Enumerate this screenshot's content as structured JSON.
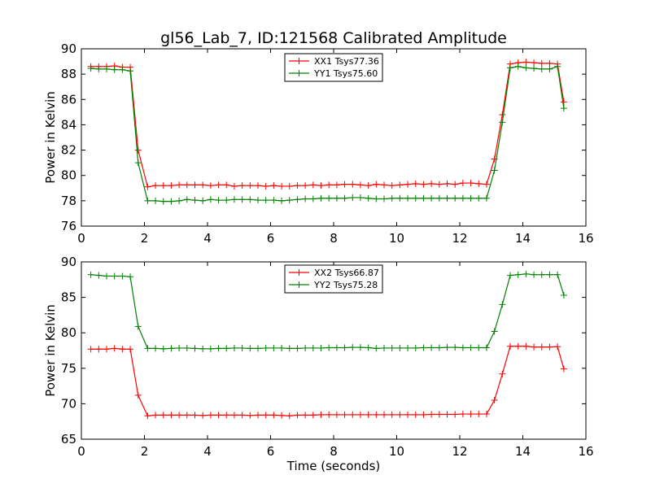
{
  "title": "gl56_Lab_7, ID:121568 Calibrated Amplitude",
  "xlabel": "Time (seconds)",
  "colors": {
    "red": "#ff0000",
    "green": "#008000"
  },
  "chart_data": [
    {
      "type": "line",
      "ylabel": "Power in Kelvin",
      "xlim": [
        0,
        16
      ],
      "ylim": [
        76,
        90
      ],
      "xticks": [
        0,
        2,
        4,
        6,
        8,
        10,
        12,
        14,
        16
      ],
      "yticks": [
        76,
        78,
        80,
        82,
        84,
        86,
        88,
        90
      ],
      "legend": "upper-center",
      "x": [
        0.3,
        0.55,
        0.8,
        1.05,
        1.3,
        1.55,
        1.8,
        2.1,
        2.35,
        2.6,
        2.85,
        3.1,
        3.35,
        3.6,
        3.85,
        4.1,
        4.35,
        4.6,
        4.85,
        5.1,
        5.35,
        5.6,
        5.85,
        6.1,
        6.35,
        6.6,
        6.85,
        7.1,
        7.35,
        7.6,
        7.85,
        8.1,
        8.35,
        8.6,
        8.85,
        9.1,
        9.35,
        9.6,
        9.85,
        10.1,
        10.35,
        10.6,
        10.85,
        11.1,
        11.35,
        11.6,
        11.85,
        12.1,
        12.35,
        12.6,
        12.85,
        13.1,
        13.35,
        13.6,
        13.85,
        14.1,
        14.35,
        14.6,
        14.85,
        15.1,
        15.3
      ],
      "series": [
        {
          "name": "XX1 Tsys77.36",
          "color": "#ff0000",
          "values": [
            88.6,
            88.6,
            88.6,
            88.65,
            88.55,
            88.55,
            82.0,
            79.1,
            79.2,
            79.2,
            79.2,
            79.25,
            79.25,
            79.25,
            79.25,
            79.2,
            79.25,
            79.25,
            79.15,
            79.2,
            79.2,
            79.2,
            79.15,
            79.2,
            79.15,
            79.15,
            79.2,
            79.2,
            79.25,
            79.2,
            79.25,
            79.25,
            79.3,
            79.3,
            79.25,
            79.2,
            79.3,
            79.25,
            79.2,
            79.25,
            79.3,
            79.35,
            79.3,
            79.35,
            79.3,
            79.35,
            79.3,
            79.4,
            79.4,
            79.35,
            79.3,
            81.3,
            84.8,
            88.8,
            88.9,
            88.95,
            88.9,
            88.85,
            88.85,
            88.8,
            85.8
          ]
        },
        {
          "name": "YY1 Tsys75.60",
          "color": "#008000",
          "values": [
            88.45,
            88.4,
            88.4,
            88.35,
            88.35,
            88.25,
            81.0,
            78.0,
            78.0,
            77.95,
            77.95,
            78.0,
            78.1,
            78.05,
            78.0,
            78.1,
            78.05,
            78.05,
            78.1,
            78.1,
            78.1,
            78.05,
            78.05,
            78.05,
            78.0,
            78.05,
            78.1,
            78.15,
            78.15,
            78.2,
            78.2,
            78.2,
            78.2,
            78.25,
            78.25,
            78.2,
            78.15,
            78.15,
            78.2,
            78.2,
            78.2,
            78.2,
            78.2,
            78.2,
            78.2,
            78.2,
            78.2,
            78.2,
            78.2,
            78.2,
            78.2,
            80.4,
            84.2,
            88.5,
            88.6,
            88.5,
            88.45,
            88.4,
            88.4,
            88.6,
            85.3
          ]
        }
      ]
    },
    {
      "type": "line",
      "ylabel": "Power in Kelvin",
      "xlabel": "Time (seconds)",
      "xlim": [
        0,
        16
      ],
      "ylim": [
        65,
        90
      ],
      "xticks": [
        0,
        2,
        4,
        6,
        8,
        10,
        12,
        14,
        16
      ],
      "yticks": [
        65,
        70,
        75,
        80,
        85,
        90
      ],
      "legend": "upper-center",
      "x": [
        0.3,
        0.55,
        0.8,
        1.05,
        1.3,
        1.55,
        1.8,
        2.1,
        2.35,
        2.6,
        2.85,
        3.1,
        3.35,
        3.6,
        3.85,
        4.1,
        4.35,
        4.6,
        4.85,
        5.1,
        5.35,
        5.6,
        5.85,
        6.1,
        6.35,
        6.6,
        6.85,
        7.1,
        7.35,
        7.6,
        7.85,
        8.1,
        8.35,
        8.6,
        8.85,
        9.1,
        9.35,
        9.6,
        9.85,
        10.1,
        10.35,
        10.6,
        10.85,
        11.1,
        11.35,
        11.6,
        11.85,
        12.1,
        12.35,
        12.6,
        12.85,
        13.1,
        13.35,
        13.6,
        13.85,
        14.1,
        14.35,
        14.6,
        14.85,
        15.1,
        15.3
      ],
      "series": [
        {
          "name": "XX2 Tsys66.87",
          "color": "#ff0000",
          "values": [
            77.7,
            77.7,
            77.7,
            77.8,
            77.7,
            77.7,
            71.2,
            68.3,
            68.4,
            68.4,
            68.4,
            68.4,
            68.4,
            68.4,
            68.35,
            68.4,
            68.4,
            68.4,
            68.4,
            68.4,
            68.35,
            68.4,
            68.4,
            68.4,
            68.35,
            68.3,
            68.4,
            68.4,
            68.4,
            68.45,
            68.45,
            68.45,
            68.45,
            68.45,
            68.45,
            68.45,
            68.45,
            68.45,
            68.45,
            68.45,
            68.45,
            68.45,
            68.45,
            68.5,
            68.5,
            68.5,
            68.5,
            68.55,
            68.55,
            68.55,
            68.55,
            70.5,
            74.2,
            78.1,
            78.1,
            78.1,
            78.0,
            78.0,
            78.0,
            78.05,
            74.9
          ]
        },
        {
          "name": "YY2 Tsys75.28",
          "color": "#008000",
          "values": [
            88.2,
            88.1,
            88.0,
            88.0,
            88.0,
            87.9,
            80.9,
            77.8,
            77.8,
            77.75,
            77.8,
            77.85,
            77.85,
            77.8,
            77.75,
            77.75,
            77.8,
            77.8,
            77.85,
            77.85,
            77.8,
            77.8,
            77.85,
            77.85,
            77.85,
            77.8,
            77.8,
            77.85,
            77.85,
            77.85,
            77.9,
            77.9,
            77.9,
            77.95,
            77.95,
            77.9,
            77.8,
            77.85,
            77.85,
            77.85,
            77.85,
            77.85,
            77.9,
            77.9,
            77.9,
            77.95,
            77.95,
            77.9,
            77.9,
            77.9,
            77.9,
            80.2,
            84.0,
            88.1,
            88.2,
            88.3,
            88.2,
            88.2,
            88.2,
            88.2,
            85.3
          ]
        }
      ]
    }
  ]
}
